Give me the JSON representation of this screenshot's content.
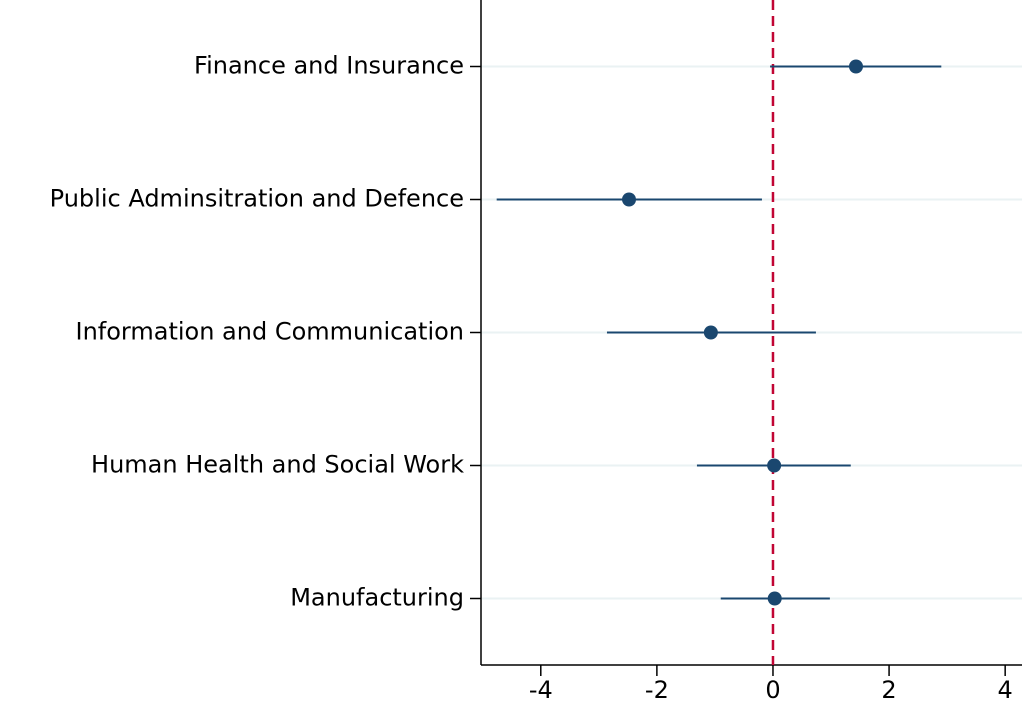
{
  "chart_data": {
    "type": "coefplot",
    "categories": [
      "Finance and Insurance",
      "Public Adminsitration and Defence",
      "Information and Communication",
      "Human Health and Social Work",
      "Manufacturing"
    ],
    "values": [
      1.43,
      -2.48,
      -1.07,
      0.02,
      0.03
    ],
    "ci_low": [
      -0.05,
      -4.76,
      -2.86,
      -1.31,
      -0.9
    ],
    "ci_high": [
      2.9,
      -0.19,
      0.74,
      1.34,
      0.98
    ],
    "color": "#1a476f",
    "xlim": [
      -5.03,
      4.29
    ],
    "xticks": [
      -4,
      -2,
      0,
      2,
      4
    ],
    "reference_line": 0,
    "reference_color": "#c10534",
    "grid": true,
    "grid_color": "#eaf2f3"
  }
}
